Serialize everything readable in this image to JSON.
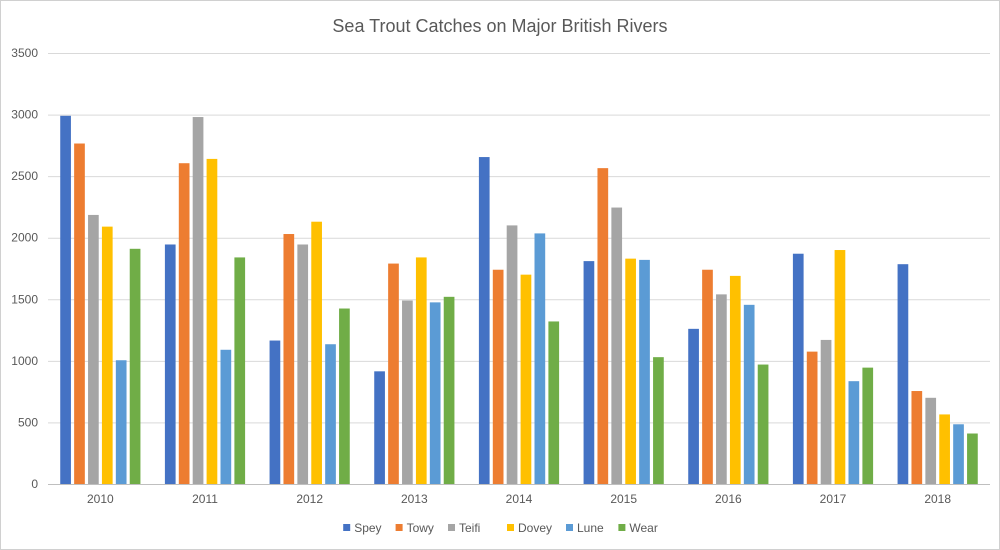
{
  "chart_data": {
    "type": "bar",
    "title": "Sea Trout Catches on Major British Rivers",
    "xlabel": "",
    "ylabel": "",
    "ylim": [
      0,
      3500
    ],
    "yticks": [
      "0",
      "500",
      "1000",
      "1500",
      "2000",
      "2500",
      "3000",
      "3500"
    ],
    "ytick_values": [
      0,
      500,
      1000,
      1500,
      2000,
      2500,
      3000,
      3500
    ],
    "grid": true,
    "legend_position": "bottom",
    "categories": [
      "2010",
      "2011",
      "2012",
      "2013",
      "2014",
      "2015",
      "2016",
      "2017",
      "2018"
    ],
    "series": [
      {
        "name": "Spey",
        "color": "#4472C4",
        "values": [
          2990,
          1945,
          1165,
          915,
          2655,
          1810,
          1260,
          1870,
          1785
        ]
      },
      {
        "name": "Towy",
        "color": "#ED7D31",
        "values": [
          2765,
          2605,
          2030,
          1790,
          1740,
          2565,
          1740,
          1075,
          755
        ]
      },
      {
        "name": "Teifi",
        "color": "#A5A5A5",
        "values": [
          2185,
          2980,
          1945,
          1490,
          2100,
          2245,
          1540,
          1170,
          700
        ]
      },
      {
        "name": "Dovey",
        "color": "#FFC000",
        "values": [
          2090,
          2640,
          2130,
          1840,
          1700,
          1830,
          1690,
          1900,
          565
        ]
      },
      {
        "name": "Lune",
        "color": "#5B9BD5",
        "values": [
          1005,
          1090,
          1135,
          1475,
          2035,
          1820,
          1455,
          835,
          485
        ]
      },
      {
        "name": "Wear",
        "color": "#70AD47",
        "values": [
          1910,
          1840,
          1425,
          1520,
          1320,
          1030,
          970,
          945,
          410
        ]
      }
    ]
  }
}
